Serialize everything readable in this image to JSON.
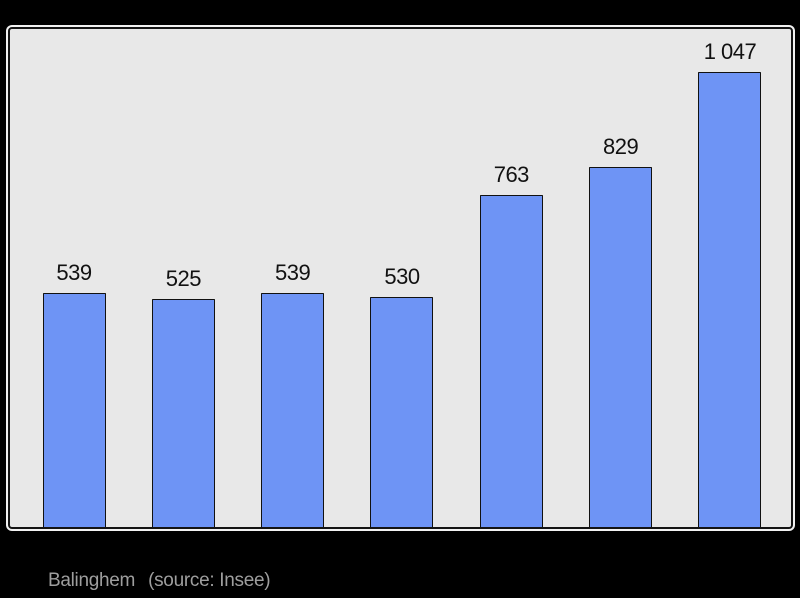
{
  "page": {
    "background": "#000000"
  },
  "frame": {
    "background": "#e8e8e8",
    "border_color": "#141414",
    "highlight_color": "#ffffff"
  },
  "chart_data": {
    "type": "bar",
    "title": "",
    "xlabel": "",
    "ylabel": "",
    "categories": [
      "",
      "",
      "",
      "",
      "",
      "",
      ""
    ],
    "values": [
      539,
      525,
      539,
      530,
      763,
      829,
      1047
    ],
    "labels": [
      "539",
      "525",
      "539",
      "530",
      "763",
      "829",
      "1 047"
    ],
    "ylim": [
      0,
      1150
    ],
    "grid": false,
    "legend": false,
    "bar_color": "#6e94f5",
    "bar_border_color": "#111111",
    "label_color": "#111111"
  },
  "caption": {
    "place": "Balinghem",
    "source": "(source: Insee)",
    "color": "#9e9e9e"
  }
}
